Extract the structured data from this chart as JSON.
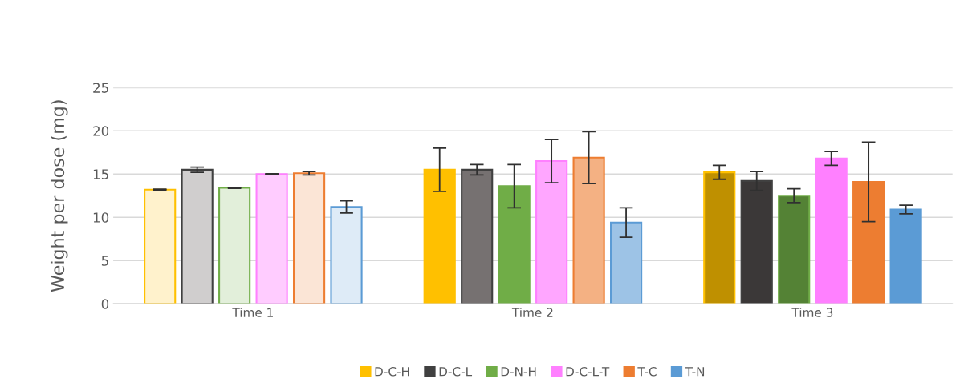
{
  "chart_data": {
    "type": "bar",
    "ylabel": "Weight per dose (mg)",
    "categories": [
      "Time 1",
      "Time 2",
      "Time 3"
    ],
    "series": [
      {
        "name": "D-C-H",
        "color": "#ffc000",
        "colors": [
          "#fff2cc",
          "#ffc000",
          "#bf9000"
        ],
        "values": [
          13.2,
          15.5,
          15.2
        ],
        "errors": [
          0.05,
          2.5,
          0.8
        ]
      },
      {
        "name": "D-C-L",
        "color": "#404040",
        "colors": [
          "#d0cece",
          "#767171",
          "#3b3838"
        ],
        "values": [
          15.5,
          15.5,
          14.2
        ],
        "errors": [
          0.3,
          0.6,
          1.1
        ]
      },
      {
        "name": "D-N-H",
        "color": "#70ad47",
        "colors": [
          "#e2efda",
          "#70ad47",
          "#548235"
        ],
        "values": [
          13.4,
          13.6,
          12.5
        ],
        "errors": [
          0.05,
          2.5,
          0.8
        ]
      },
      {
        "name": "D-C-L-T",
        "color": "#ff80ff",
        "colors": [
          "#ffccff",
          "#ffa6ff",
          "#ff80ff"
        ],
        "values": [
          15.0,
          16.5,
          16.8
        ],
        "errors": [
          0.03,
          2.5,
          0.8
        ]
      },
      {
        "name": "T-C",
        "color": "#ed7d31",
        "colors": [
          "#fbe5d6",
          "#f4b183",
          "#ed7d31"
        ],
        "values": [
          15.1,
          16.9,
          14.1
        ],
        "errors": [
          0.2,
          3.0,
          4.6
        ]
      },
      {
        "name": "T-N",
        "color": "#5b9bd5",
        "colors": [
          "#deebf7",
          "#9dc3e6",
          "#5b9bd5"
        ],
        "values": [
          11.2,
          9.4,
          10.9
        ],
        "errors": [
          0.7,
          1.7,
          0.5
        ]
      }
    ],
    "ylim": [
      0,
      25
    ],
    "yticks": [
      0,
      5,
      10,
      15,
      20,
      25
    ],
    "grid": "y",
    "legend": "bottom"
  }
}
